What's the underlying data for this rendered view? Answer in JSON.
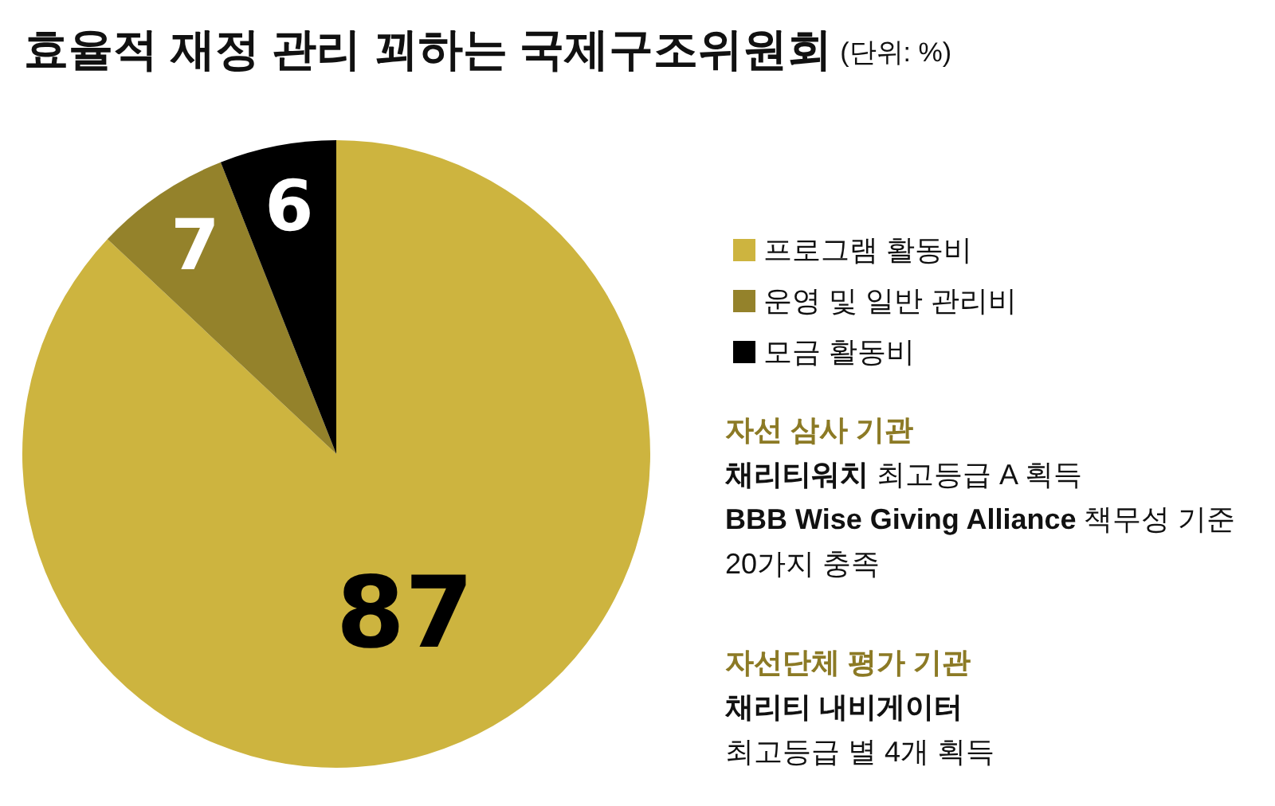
{
  "chart_data": {
    "type": "pie",
    "title": "효율적 재정 관리 꾀하는 국제구조위원회",
    "subtitle": "(단위: %)",
    "categories": [
      "프로그램 활동비",
      "운영 및 일반 관리비",
      "모금 활동비"
    ],
    "values": [
      87,
      7,
      6
    ],
    "colors": [
      "#cdb43f",
      "#94822b",
      "#000000"
    ],
    "data_labels": true,
    "legend": "right",
    "annotations": [
      "자선 삼사 기관",
      "채리티워치",
      "최고등급 A 획득",
      "BBB Wise Giving Alliance",
      "책무성 기준",
      "20가지 충족",
      "자선단체 평가 기관",
      "채리티 내비게이터",
      "최고등급 별 4개 획득"
    ]
  }
}
